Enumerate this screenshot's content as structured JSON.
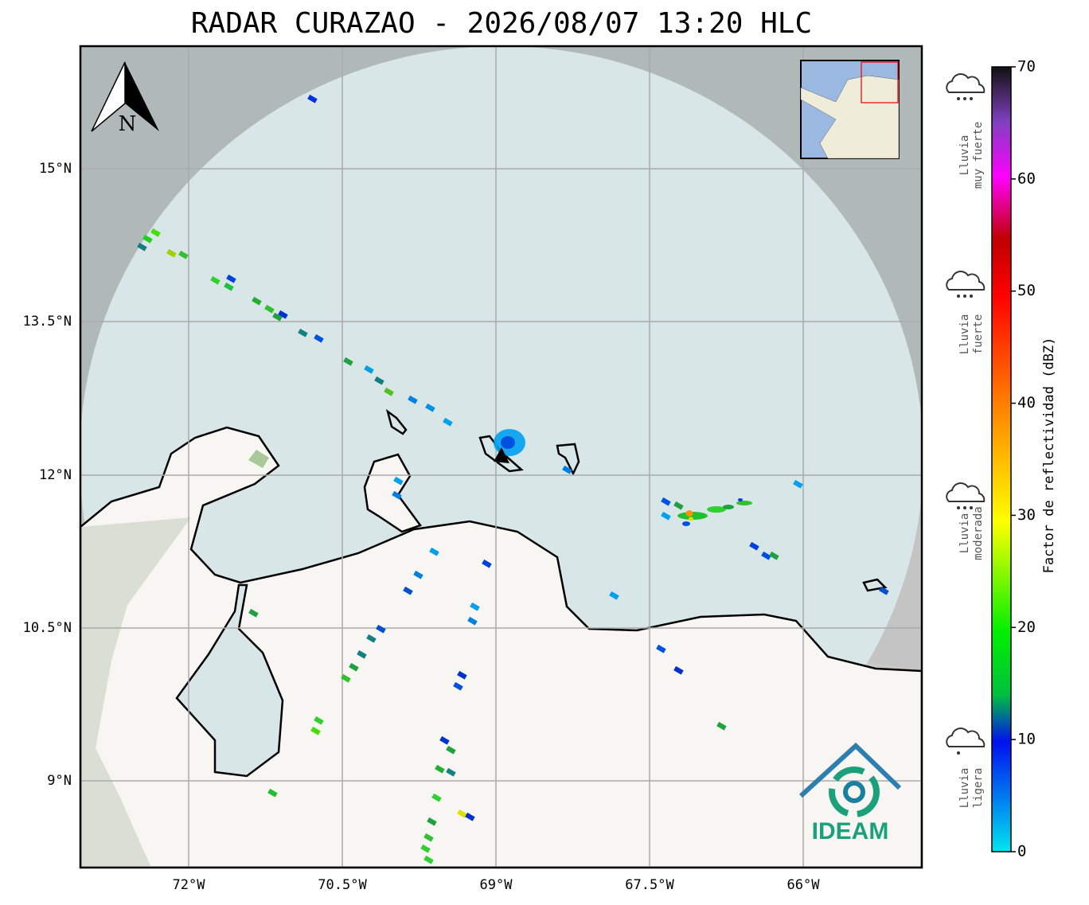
{
  "title": "RADAR CURAZAO - 2026/08/07 13:20 HLC",
  "map": {
    "lat_labels": [
      "15°N",
      "13.5°N",
      "12°N",
      "10.5°N",
      "9°N"
    ],
    "lon_labels": [
      "72°W",
      "70.5°W",
      "69°W",
      "67.5°W",
      "66°W"
    ],
    "north_label": "N",
    "logo_text": "IDEAM"
  },
  "colorbar": {
    "label": "Factor de reflectividad (dBZ)",
    "ticks": [
      0,
      10,
      20,
      30,
      40,
      50,
      60,
      70
    ]
  },
  "legend": [
    {
      "lines": [
        "Lluvia",
        "muy fuerte"
      ]
    },
    {
      "lines": [
        "Lluvia",
        "fuerte"
      ]
    },
    {
      "lines": [
        "Lluvia",
        "moderada"
      ]
    },
    {
      "lines": [
        "Lluvia",
        "ligera"
      ]
    }
  ]
}
